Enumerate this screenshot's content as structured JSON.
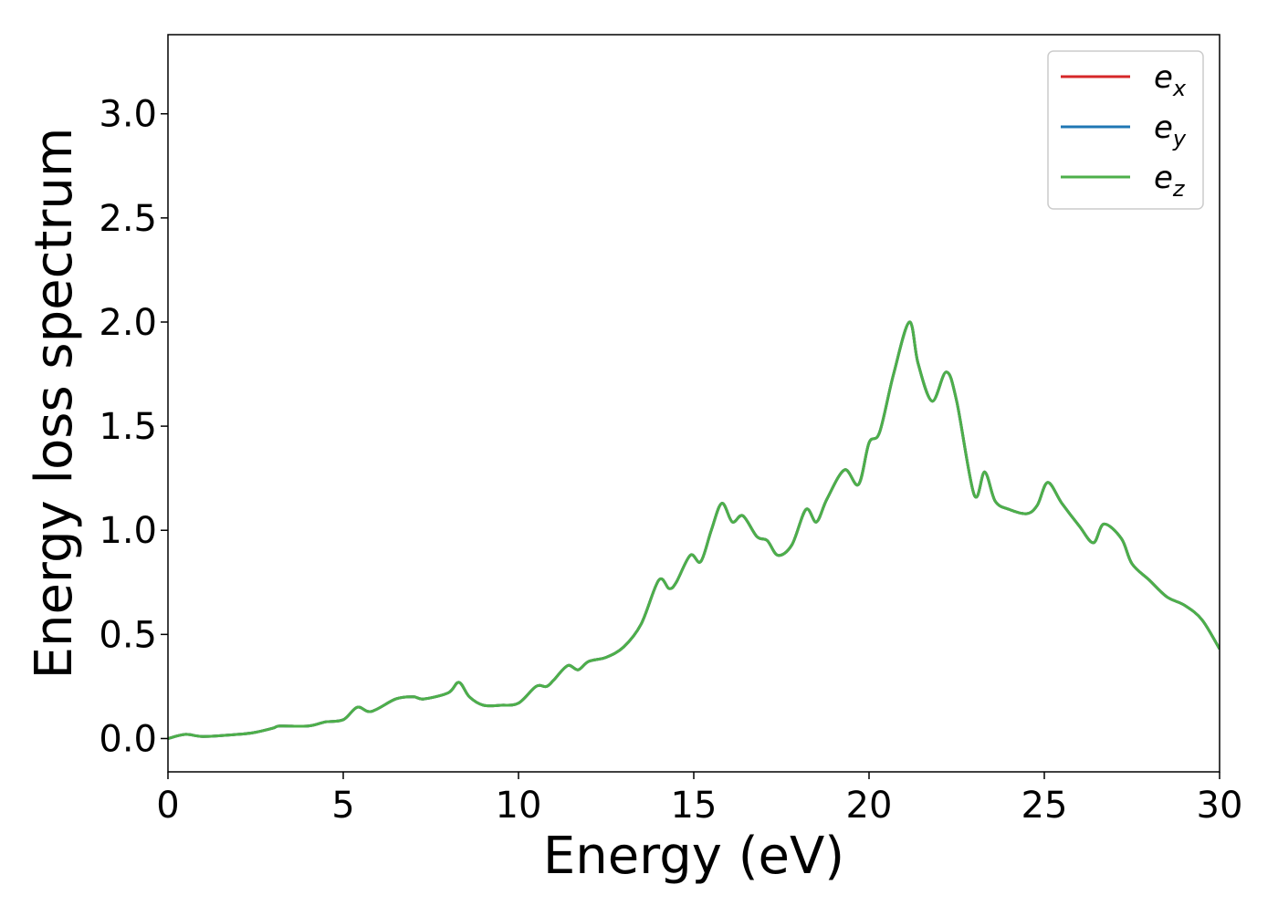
{
  "chart_data": {
    "type": "line",
    "title": "",
    "xlabel": "Energy (eV)",
    "ylabel": "Energy loss spectrum",
    "xlim": [
      0,
      30
    ],
    "ylim": [
      -0.16,
      3.38
    ],
    "xticks": [
      0,
      5,
      10,
      15,
      20,
      25,
      30
    ],
    "xtick_labels": [
      "0",
      "5",
      "10",
      "15",
      "20",
      "25",
      "30"
    ],
    "yticks": [
      0.0,
      0.5,
      1.0,
      1.5,
      2.0,
      2.5,
      3.0
    ],
    "ytick_labels": [
      "0.0",
      "0.5",
      "1.0",
      "1.5",
      "2.0",
      "2.5",
      "3.0"
    ],
    "grid": false,
    "legend_position": "top-right",
    "x": [
      0,
      0.5,
      1,
      2,
      2.5,
      3,
      3.2,
      4,
      4.5,
      5,
      5.4,
      5.8,
      6.5,
      7,
      7.3,
      8,
      8.3,
      8.6,
      9,
      9.5,
      10,
      10.5,
      10.8,
      11,
      11.4,
      11.7,
      12,
      12.5,
      13,
      13.5,
      14,
      14.3,
      14.5,
      14.9,
      15.2,
      15.5,
      15.8,
      16.1,
      16.4,
      16.8,
      17.1,
      17.4,
      17.8,
      18.2,
      18.5,
      18.8,
      19.3,
      19.7,
      20,
      20.3,
      20.7,
      21.15,
      21.4,
      21.8,
      22.2,
      22.5,
      23,
      23.3,
      23.6,
      24,
      24.5,
      24.8,
      25.1,
      25.5,
      26,
      26.4,
      26.7,
      27.2,
      27.5,
      28,
      28.5,
      29,
      29.5,
      30
    ],
    "series": [
      {
        "name": "e_x",
        "legend_main": "e",
        "legend_sub": "x",
        "color": "#d62728",
        "values": [
          0.0,
          0.02,
          0.01,
          0.02,
          0.03,
          0.05,
          0.06,
          0.06,
          0.08,
          0.09,
          0.15,
          0.13,
          0.19,
          0.2,
          0.19,
          0.22,
          0.27,
          0.2,
          0.16,
          0.16,
          0.17,
          0.25,
          0.25,
          0.28,
          0.35,
          0.33,
          0.37,
          0.39,
          0.44,
          0.55,
          0.76,
          0.72,
          0.75,
          0.88,
          0.85,
          1.0,
          1.13,
          1.04,
          1.07,
          0.97,
          0.95,
          0.88,
          0.93,
          1.1,
          1.04,
          1.15,
          1.29,
          1.22,
          1.42,
          1.47,
          1.75,
          2.0,
          1.8,
          1.62,
          1.76,
          1.62,
          1.17,
          1.28,
          1.14,
          1.1,
          1.08,
          1.12,
          1.23,
          1.13,
          1.02,
          0.94,
          1.03,
          0.96,
          0.84,
          0.76,
          0.68,
          0.64,
          0.57,
          0.43
        ]
      },
      {
        "name": "e_y",
        "legend_main": "e",
        "legend_sub": "y",
        "color": "#1f77b4",
        "values": [
          0.0,
          0.02,
          0.01,
          0.02,
          0.03,
          0.05,
          0.06,
          0.06,
          0.08,
          0.09,
          0.15,
          0.13,
          0.19,
          0.2,
          0.19,
          0.22,
          0.27,
          0.2,
          0.16,
          0.16,
          0.17,
          0.25,
          0.25,
          0.28,
          0.35,
          0.33,
          0.37,
          0.39,
          0.44,
          0.55,
          0.76,
          0.72,
          0.75,
          0.88,
          0.85,
          1.0,
          1.13,
          1.04,
          1.07,
          0.97,
          0.95,
          0.88,
          0.93,
          1.1,
          1.04,
          1.15,
          1.29,
          1.22,
          1.42,
          1.47,
          1.75,
          2.0,
          1.8,
          1.62,
          1.76,
          1.62,
          1.17,
          1.28,
          1.14,
          1.1,
          1.08,
          1.12,
          1.23,
          1.13,
          1.02,
          0.94,
          1.03,
          0.96,
          0.84,
          0.76,
          0.68,
          0.64,
          0.57,
          0.43
        ]
      },
      {
        "name": "e_z",
        "legend_main": "e",
        "legend_sub": "z",
        "color": "#4daf4a",
        "values": [
          0.0,
          0.02,
          0.01,
          0.02,
          0.03,
          0.05,
          0.06,
          0.06,
          0.08,
          0.09,
          0.15,
          0.13,
          0.19,
          0.2,
          0.19,
          0.22,
          0.27,
          0.2,
          0.16,
          0.16,
          0.17,
          0.25,
          0.25,
          0.28,
          0.35,
          0.33,
          0.37,
          0.39,
          0.44,
          0.55,
          0.76,
          0.72,
          0.75,
          0.88,
          0.85,
          1.0,
          1.13,
          1.04,
          1.07,
          0.97,
          0.95,
          0.88,
          0.93,
          1.1,
          1.04,
          1.15,
          1.29,
          1.22,
          1.42,
          1.47,
          1.75,
          2.0,
          1.8,
          1.62,
          1.76,
          1.62,
          1.17,
          1.28,
          1.14,
          1.1,
          1.08,
          1.12,
          1.23,
          1.13,
          1.02,
          0.94,
          1.03,
          0.96,
          0.84,
          0.76,
          0.68,
          0.64,
          0.57,
          0.43
        ]
      }
    ]
  }
}
